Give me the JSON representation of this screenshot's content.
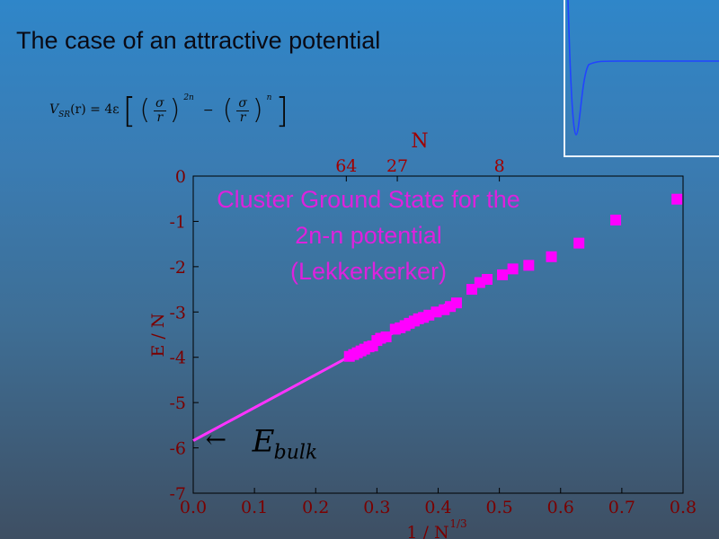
{
  "slide": {
    "title": "The case of an attractive potential",
    "formula": {
      "lhs": "V",
      "lhs_sub": "SR",
      "lhs_arg": "(r) = 4ε",
      "sigma": "σ",
      "r": "r",
      "power1": "2n",
      "minus": "−",
      "power2": "n"
    }
  },
  "colors": {
    "marker": "#ff00ff",
    "fit_line": "#ff33ff",
    "title_text": "#dd22dd",
    "axis_text": "#7a0000",
    "top_axis_text": "#a00000",
    "inset_curve": "#2244ff"
  },
  "chart_data": {
    "type": "scatter",
    "title": "Cluster Ground State for the\n2n-n potential\n(Lekkerkerker)",
    "title_lines": [
      "Cluster Ground State for the",
      "2n-n potential",
      "(Lekkerkerker)"
    ],
    "xlabel": "1 / N",
    "xlabel_superscript": "1/3",
    "ylabel": "E / N",
    "top_axis_label": "N",
    "top_ticks": [
      {
        "label": "64",
        "x": 0.25
      },
      {
        "label": "27",
        "x": 0.3333
      },
      {
        "label": "8",
        "x": 0.5
      }
    ],
    "xlim": [
      0.0,
      0.8
    ],
    "ylim": [
      -7,
      0
    ],
    "x_ticks": [
      "0.0",
      "0.1",
      "0.2",
      "0.3",
      "0.4",
      "0.5",
      "0.6",
      "0.7",
      "0.8"
    ],
    "y_ticks": [
      "0",
      "-1",
      "-2",
      "-3",
      "-4",
      "-5",
      "-6",
      "-7"
    ],
    "annotation": {
      "arrow": "←",
      "text": "E",
      "sub": "bulk",
      "x": 0.02,
      "y": -5.8
    },
    "fit_line": {
      "x": [
        0.0,
        0.415
      ],
      "y": [
        -5.84,
        -2.82
      ]
    },
    "series": [
      {
        "points": [
          [
            0.255,
            -3.98
          ],
          [
            0.262,
            -3.94
          ],
          [
            0.268,
            -3.9
          ],
          [
            0.274,
            -3.86
          ],
          [
            0.28,
            -3.82
          ],
          [
            0.287,
            -3.77
          ],
          [
            0.293,
            -3.75
          ],
          [
            0.3,
            -3.63
          ],
          [
            0.306,
            -3.58
          ],
          [
            0.315,
            -3.55
          ],
          [
            0.33,
            -3.38
          ],
          [
            0.338,
            -3.35
          ],
          [
            0.346,
            -3.3
          ],
          [
            0.353,
            -3.25
          ],
          [
            0.361,
            -3.2
          ],
          [
            0.368,
            -3.15
          ],
          [
            0.376,
            -3.12
          ],
          [
            0.385,
            -3.07
          ],
          [
            0.397,
            -3.0
          ],
          [
            0.41,
            -2.95
          ],
          [
            0.42,
            -2.88
          ],
          [
            0.43,
            -2.8
          ],
          [
            0.455,
            -2.5
          ],
          [
            0.468,
            -2.35
          ],
          [
            0.48,
            -2.28
          ],
          [
            0.505,
            -2.18
          ],
          [
            0.522,
            -2.05
          ],
          [
            0.548,
            -1.97
          ],
          [
            0.585,
            -1.78
          ],
          [
            0.63,
            -1.48
          ],
          [
            0.69,
            -0.97
          ],
          [
            0.79,
            -0.51
          ]
        ]
      }
    ]
  }
}
